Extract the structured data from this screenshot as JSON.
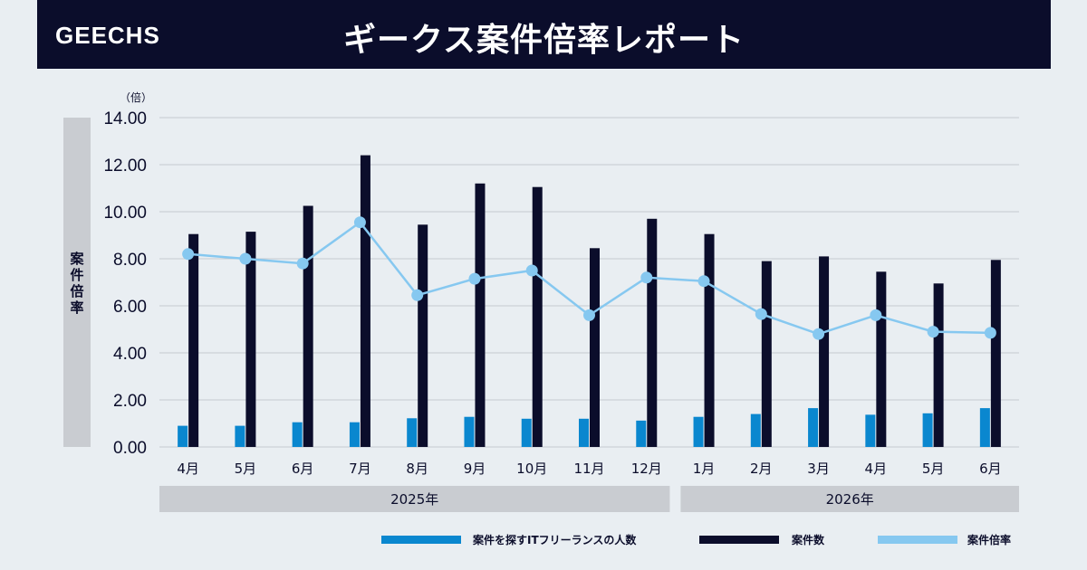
{
  "header": {
    "brand": "GEECHS",
    "title": "ギークス案件倍率レポート"
  },
  "colors": {
    "header_bg": "#0b0d2b",
    "freelancers_bar": "#0a87cf",
    "cases_bar": "#0b0d2b",
    "ratio_line": "#86c8f0"
  },
  "chart_data": {
    "type": "bar",
    "ylabel": "案件倍率",
    "yunit": "（倍）",
    "ylim": [
      0,
      14
    ],
    "yticks": [
      "0.00",
      "2.00",
      "4.00",
      "6.00",
      "8.00",
      "10.00",
      "12.00",
      "14.00"
    ],
    "grid": true,
    "categories": [
      "4月",
      "5月",
      "6月",
      "7月",
      "8月",
      "9月",
      "10月",
      "11月",
      "12月",
      "1月",
      "2月",
      "3月",
      "4月",
      "5月",
      "6月"
    ],
    "year_groups": [
      {
        "label": "2025年",
        "count": 9
      },
      {
        "label": "2026年",
        "count": 6
      }
    ],
    "series": [
      {
        "name": "案件を探すITフリーランスの人数",
        "kind": "bar",
        "values": [
          0.9,
          0.9,
          1.05,
          1.05,
          1.22,
          1.28,
          1.2,
          1.2,
          1.12,
          1.28,
          1.4,
          1.65,
          1.37,
          1.43,
          1.65
        ]
      },
      {
        "name": "案件数",
        "kind": "bar",
        "values": [
          9.05,
          9.15,
          10.25,
          12.4,
          9.45,
          11.2,
          11.05,
          8.45,
          9.7,
          9.05,
          7.9,
          8.1,
          7.45,
          6.95,
          7.95
        ]
      },
      {
        "name": "案件倍率",
        "kind": "line",
        "values": [
          8.2,
          8.0,
          7.8,
          9.55,
          6.45,
          7.15,
          7.5,
          5.6,
          7.2,
          7.05,
          5.65,
          4.8,
          5.6,
          4.9,
          4.85
        ]
      }
    ],
    "legend_position": "bottom-right"
  }
}
